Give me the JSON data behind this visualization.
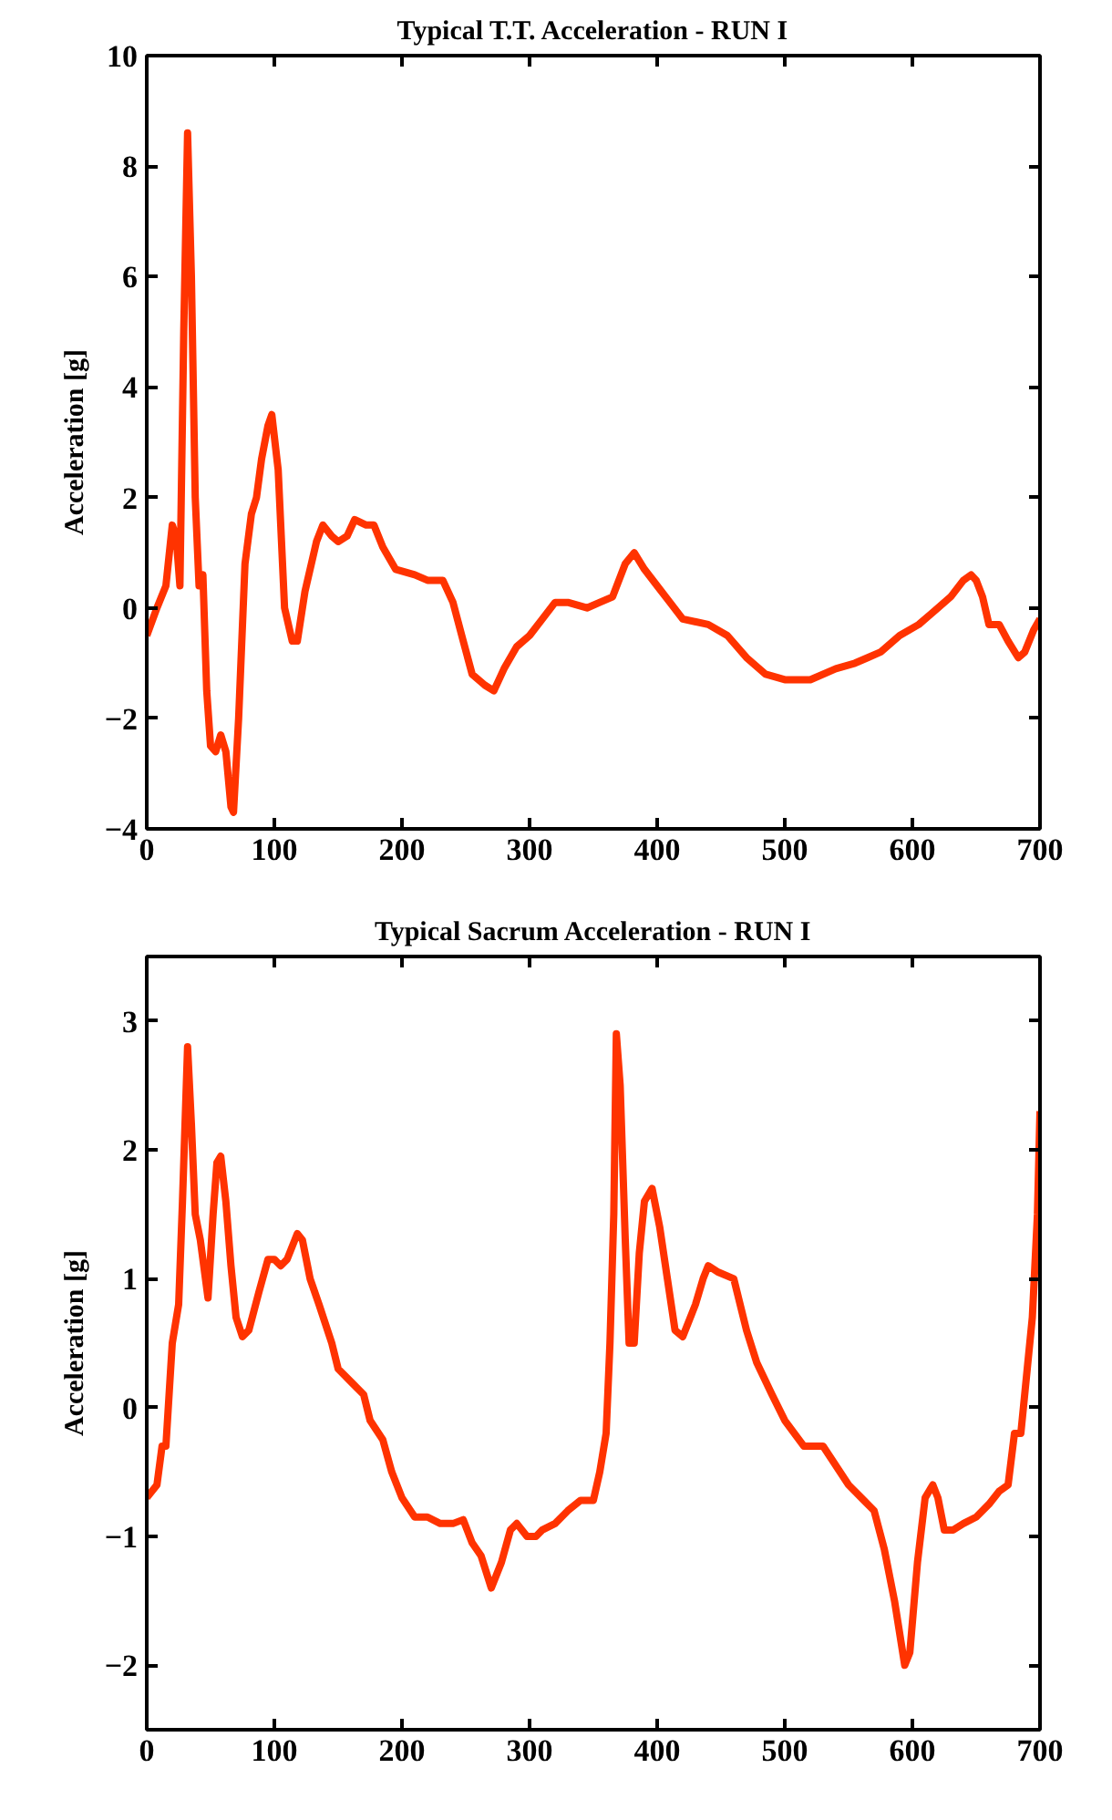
{
  "chart_data": [
    {
      "type": "line",
      "title": "Typical T.T. Acceleration - RUN I",
      "ylabel": "Acceleration [g]",
      "xlim": [
        0,
        700
      ],
      "ylim": [
        -4,
        10
      ],
      "xticks": [
        0,
        100,
        200,
        300,
        400,
        500,
        600,
        700
      ],
      "yticks": [
        -4,
        -2,
        0,
        2,
        4,
        6,
        8,
        10
      ],
      "line_style": "solid",
      "series": [
        {
          "color": "#ff3300",
          "x": [
            0,
            8,
            15,
            20,
            23,
            26,
            29,
            32,
            35,
            38,
            41,
            44,
            47,
            50,
            54,
            58,
            62,
            66,
            68,
            72,
            77,
            82,
            86,
            90,
            95,
            98,
            103,
            108,
            114,
            118,
            124,
            133,
            138,
            145,
            150,
            157,
            163,
            172,
            178,
            185,
            195,
            210,
            220,
            232,
            240,
            248,
            255,
            265,
            272,
            280,
            290,
            300,
            310,
            320,
            330,
            345,
            355,
            365,
            375,
            382,
            390,
            400,
            410,
            420,
            440,
            455,
            470,
            485,
            500,
            520,
            540,
            555,
            565,
            575,
            590,
            605,
            620,
            630,
            640,
            646,
            650,
            655,
            660,
            668,
            675,
            683,
            688,
            695,
            700
          ],
          "values": [
            -0.5,
            0,
            0.4,
            1.5,
            1.3,
            0.4,
            5,
            8.6,
            6,
            2,
            0.4,
            0.6,
            -1.5,
            -2.5,
            -2.6,
            -2.3,
            -2.6,
            -3.6,
            -3.7,
            -2,
            0.8,
            1.7,
            2,
            2.7,
            3.3,
            3.5,
            2.5,
            0,
            -0.6,
            -0.6,
            0.3,
            1.2,
            1.5,
            1.3,
            1.2,
            1.3,
            1.6,
            1.5,
            1.5,
            1.1,
            0.7,
            0.6,
            0.5,
            0.5,
            0.1,
            -0.6,
            -1.2,
            -1.4,
            -1.5,
            -1.1,
            -0.7,
            -0.5,
            -0.2,
            0.1,
            0.1,
            0,
            0.1,
            0.2,
            0.8,
            1,
            0.7,
            0.4,
            0.1,
            -0.2,
            -0.3,
            -0.5,
            -0.9,
            -1.2,
            -1.3,
            -1.3,
            -1.1,
            -1,
            -0.9,
            -0.8,
            -0.5,
            -0.3,
            0,
            0.2,
            0.5,
            0.6,
            0.5,
            0.2,
            -0.3,
            -0.3,
            -0.6,
            -0.9,
            -0.8,
            -0.4,
            -0.2
          ]
        }
      ]
    },
    {
      "type": "line",
      "title": "Typical Sacrum Acceleration - RUN I",
      "ylabel": "Acceleration [g]",
      "xlim": [
        0,
        700
      ],
      "ylim": [
        -2.5,
        3.5
      ],
      "xticks": [
        0,
        100,
        200,
        300,
        400,
        500,
        600,
        700
      ],
      "yticks": [
        -2,
        -1,
        0,
        1,
        2,
        3
      ],
      "line_style": "solid",
      "series": [
        {
          "color": "#ff3300",
          "x": [
            0,
            8,
            12,
            15,
            20,
            25,
            28,
            32,
            35,
            38,
            42,
            48,
            52,
            55,
            58,
            62,
            66,
            70,
            75,
            80,
            88,
            95,
            100,
            105,
            110,
            118,
            122,
            128,
            135,
            145,
            150,
            160,
            170,
            175,
            185,
            192,
            200,
            210,
            220,
            230,
            240,
            248,
            255,
            262,
            270,
            278,
            285,
            290,
            298,
            305,
            310,
            320,
            330,
            340,
            350,
            355,
            360,
            363,
            366,
            368,
            371,
            375,
            378,
            382,
            386,
            390,
            396,
            402,
            408,
            414,
            420,
            430,
            436,
            440,
            448,
            460,
            470,
            478,
            490,
            500,
            515,
            530,
            540,
            550,
            560,
            570,
            578,
            586,
            594,
            598,
            604,
            610,
            616,
            620,
            625,
            632,
            640,
            650,
            660,
            668,
            675,
            680,
            685,
            690,
            694,
            698,
            700
          ],
          "values": [
            -0.7,
            -0.6,
            -0.3,
            -0.3,
            0.5,
            0.8,
            1.6,
            2.8,
            2.2,
            1.5,
            1.3,
            0.85,
            1.5,
            1.9,
            1.95,
            1.6,
            1.1,
            0.7,
            0.55,
            0.6,
            0.9,
            1.15,
            1.15,
            1.1,
            1.15,
            1.35,
            1.3,
            1,
            0.8,
            0.5,
            0.3,
            0.2,
            0.1,
            -0.1,
            -0.25,
            -0.5,
            -0.7,
            -0.85,
            -0.85,
            -0.9,
            -0.9,
            -0.87,
            -1.05,
            -1.15,
            -1.4,
            -1.2,
            -0.95,
            -0.9,
            -1,
            -1,
            -0.95,
            -0.9,
            -0.8,
            -0.72,
            -0.72,
            -0.5,
            -0.2,
            0.5,
            1.5,
            2.9,
            2.5,
            1.3,
            0.5,
            0.5,
            1.2,
            1.6,
            1.7,
            1.4,
            1,
            0.6,
            0.55,
            0.8,
            1,
            1.1,
            1.05,
            1,
            0.6,
            0.35,
            0.1,
            -0.1,
            -0.3,
            -0.3,
            -0.45,
            -0.6,
            -0.7,
            -0.8,
            -1.1,
            -1.5,
            -2,
            -1.9,
            -1.2,
            -0.7,
            -0.6,
            -0.7,
            -0.95,
            -0.95,
            -0.9,
            -0.85,
            -0.75,
            -0.65,
            -0.6,
            -0.2,
            -0.2,
            0.3,
            0.7,
            1.5,
            2.3
          ]
        }
      ]
    }
  ]
}
